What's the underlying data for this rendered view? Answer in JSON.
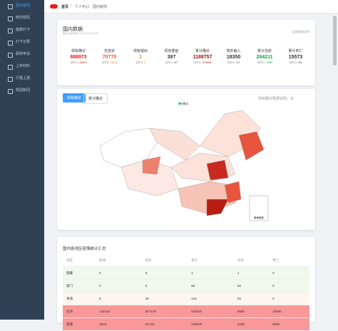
{
  "sidebar": {
    "items": [
      "国内疫情",
      "修改密码",
      "健康打卡",
      "打卡记录",
      "假校申请",
      "上传材料",
      "行程上报",
      "校园新闻"
    ]
  },
  "breadcrumb": {
    "home": "首页",
    "items": [
      "个人中心",
      "国内疫情"
    ]
  },
  "summary": {
    "title": "国内数据",
    "time": "截至北京时间 2022-10-13 23:02",
    "note": "疫情数据说明",
    "stats": [
      {
        "label": "现有确诊",
        "value": "888973",
        "delta_label": "较昨日",
        "delta": "+96520",
        "color": "#e02020"
      },
      {
        "label": "无症状",
        "value": "70770",
        "delta_label": "较昨日",
        "delta": "+3270",
        "color": "#e8562a"
      },
      {
        "label": "现有疑似",
        "value": "1",
        "delta_label": "较昨日",
        "delta": "0",
        "color": "#f28b00"
      },
      {
        "label": "现有重症",
        "value": "397",
        "delta_label": "较昨日",
        "delta": "+47",
        "color": "#333"
      },
      {
        "label": "累计确诊",
        "value": "1188757",
        "delta_label": "较昨日",
        "delta": "+103694",
        "color": "#9e0b0b"
      },
      {
        "label": "境外输入",
        "value": "18350",
        "delta_label": "较昨日",
        "delta": "+12",
        "color": "#333"
      },
      {
        "label": "累计治愈",
        "value": "284211",
        "delta_label": "较昨日",
        "delta": "+7865",
        "color": "#17a34a"
      },
      {
        "label": "累计死亡",
        "value": "15573",
        "delta_label": "较昨日",
        "delta": "+34",
        "color": "#333"
      }
    ]
  },
  "map": {
    "tabs": [
      "现有确诊",
      "累计确诊"
    ],
    "hint": "现有确诊数据说明，点",
    "legend": "确诊",
    "south_sea": "南海诸岛"
  },
  "table": {
    "title": "国内各地区疫情统计汇总",
    "headers": [
      "地区",
      "新增",
      "现有",
      "累计",
      "治愈",
      "死亡"
    ],
    "rows": [
      [
        "西藏",
        "0",
        "0",
        "1",
        "1",
        "0"
      ],
      [
        "澳门",
        "0",
        "0",
        "82",
        "82",
        "0"
      ],
      [
        "青海",
        "6",
        "46",
        "142",
        "94",
        "0"
      ],
      [
        "台湾",
        "134416",
        "827176",
        "820870",
        "8905",
        "10990"
      ],
      [
        "香港",
        "2918",
        "91719",
        "426979",
        "3209",
        "9505"
      ]
    ],
    "row_colors": [
      "#f0f9eb",
      "#f0f9eb",
      "#fdf6ec",
      "#f89898",
      "#f89898"
    ]
  }
}
